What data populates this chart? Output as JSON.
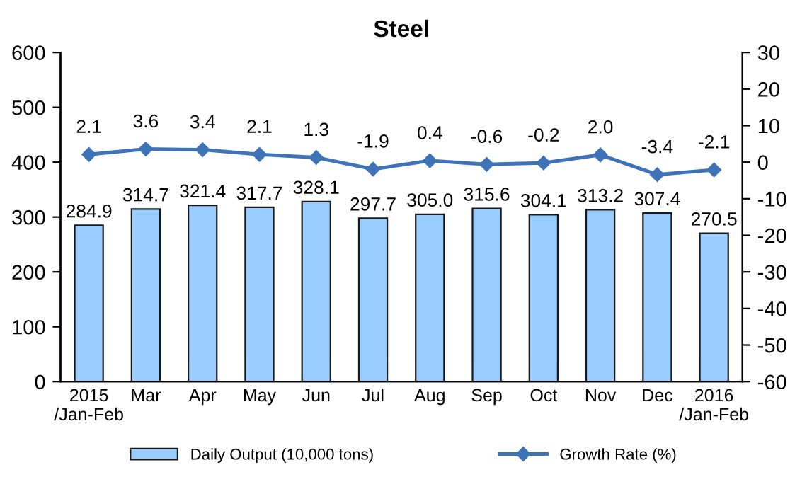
{
  "chart_data": {
    "type": "bar",
    "title": "Steel",
    "categories": [
      "2015\n/Jan-Feb",
      "Mar",
      "Apr",
      "May",
      "Jun",
      "Jul",
      "Aug",
      "Sep",
      "Oct",
      "Nov",
      "Dec",
      "2016\n/Jan-Feb"
    ],
    "series": [
      {
        "name": "Daily Output (10,000 tons)",
        "color": "#99ccff",
        "values": [
          284.9,
          314.7,
          321.4,
          317.7,
          328.1,
          297.7,
          305.0,
          315.6,
          304.1,
          313.2,
          307.4,
          270.5
        ],
        "value_labels": [
          "284.9",
          "314.7",
          "321.4",
          "317.7",
          "328.1",
          "297.7",
          "305.0",
          "315.6",
          "304.1",
          "313.2",
          "307.4",
          "270.5"
        ]
      },
      {
        "name": "Growth Rate (%)",
        "type": "line",
        "axis": "y2",
        "color": "#3f73b8",
        "marker": "diamond",
        "values": [
          2.1,
          3.6,
          3.4,
          2.1,
          1.3,
          -1.9,
          0.4,
          -0.6,
          -0.2,
          2.0,
          -3.4,
          -2.1
        ],
        "value_labels": [
          "2.1",
          "3.6",
          "3.4",
          "2.1",
          "1.3",
          "-1.9",
          "0.4",
          "-0.6",
          "-0.2",
          "2.0",
          "-3.4",
          "-2.1"
        ]
      }
    ],
    "ylim": [
      0,
      600
    ],
    "yticks": [
      0,
      100,
      200,
      300,
      400,
      500,
      600
    ],
    "y2lim": [
      -60,
      30
    ],
    "y2ticks": [
      -60,
      -50,
      -40,
      -30,
      -20,
      -10,
      0,
      10,
      20,
      30
    ],
    "grid": false,
    "legend": "bottom"
  }
}
